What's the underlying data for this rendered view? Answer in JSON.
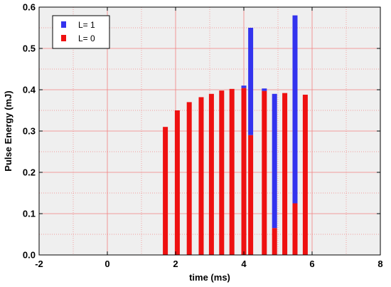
{
  "chart_data": {
    "type": "bar",
    "title": "",
    "xlabel": "time (ms)",
    "ylabel": "Pulse Energy (mJ)",
    "xlim": [
      -2,
      8
    ],
    "ylim": [
      0,
      0.6
    ],
    "xticks": [
      "-2",
      "0",
      "2",
      "4",
      "6",
      "8"
    ],
    "yticks": [
      "0.0",
      "0.1",
      "0.2",
      "0.3",
      "0.4",
      "0.5",
      "0.6"
    ],
    "grid": true,
    "legend_position": "top-left",
    "series": [
      {
        "name": "L= 1",
        "color": "#3333ee",
        "bars": [
          {
            "x": 4.0,
            "from": 0.404,
            "to": 0.41
          },
          {
            "x": 4.2,
            "from": 0.29,
            "to": 0.55
          },
          {
            "x": 4.6,
            "from": 0.397,
            "to": 0.403
          },
          {
            "x": 4.9,
            "from": 0.065,
            "to": 0.39
          },
          {
            "x": 5.5,
            "from": 0.125,
            "to": 0.58
          }
        ]
      },
      {
        "name": "L= 0",
        "color": "#ee1111",
        "bars": [
          {
            "x": 1.7,
            "from": 0,
            "to": 0.31
          },
          {
            "x": 2.05,
            "from": 0,
            "to": 0.35
          },
          {
            "x": 2.4,
            "from": 0,
            "to": 0.37
          },
          {
            "x": 2.75,
            "from": 0,
            "to": 0.382
          },
          {
            "x": 3.05,
            "from": 0,
            "to": 0.39
          },
          {
            "x": 3.35,
            "from": 0,
            "to": 0.398
          },
          {
            "x": 3.65,
            "from": 0,
            "to": 0.402
          },
          {
            "x": 4.0,
            "from": 0,
            "to": 0.404
          },
          {
            "x": 4.2,
            "from": 0,
            "to": 0.29
          },
          {
            "x": 4.6,
            "from": 0,
            "to": 0.397
          },
          {
            "x": 4.9,
            "from": 0,
            "to": 0.065
          },
          {
            "x": 5.2,
            "from": 0,
            "to": 0.392
          },
          {
            "x": 5.5,
            "from": 0,
            "to": 0.125
          },
          {
            "x": 5.8,
            "from": 0,
            "to": 0.388
          }
        ]
      }
    ]
  }
}
